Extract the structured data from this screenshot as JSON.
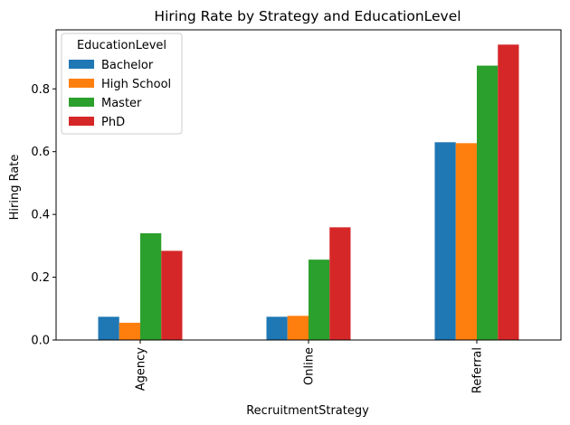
{
  "chart_data": {
    "type": "bar",
    "title": "Hiring Rate by Strategy and EducationLevel",
    "xlabel": "RecruitmentStrategy",
    "ylabel": "Hiring Rate",
    "categories": [
      "Agency",
      "Online",
      "Referral"
    ],
    "series": [
      {
        "name": "Bachelor",
        "color": "#1f77b4",
        "values": [
          0.074,
          0.074,
          0.63
        ]
      },
      {
        "name": "High School",
        "color": "#ff7f0e",
        "values": [
          0.055,
          0.077,
          0.627
        ]
      },
      {
        "name": "Master",
        "color": "#2ca02c",
        "values": [
          0.34,
          0.256,
          0.874
        ]
      },
      {
        "name": "PhD",
        "color": "#d62728",
        "values": [
          0.284,
          0.359,
          0.941
        ]
      }
    ],
    "ylim": [
      0,
      0.988
    ],
    "yticks": [
      0.0,
      0.2,
      0.4,
      0.6,
      0.8
    ],
    "ytick_labels": [
      "0.0",
      "0.2",
      "0.4",
      "0.6",
      "0.8"
    ],
    "legend": {
      "title": "EducationLevel",
      "placement": "top-left"
    },
    "grid": false
  }
}
